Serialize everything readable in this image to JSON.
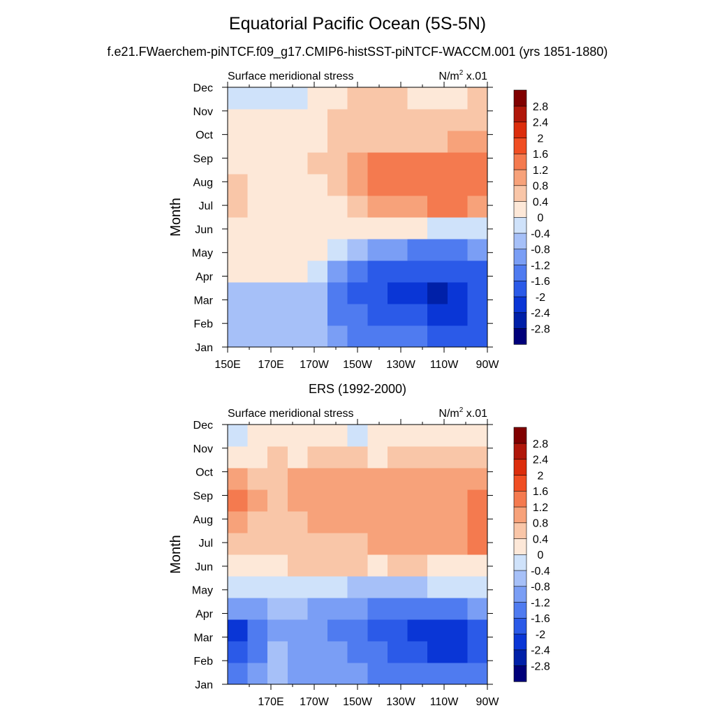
{
  "header": {
    "title": "Equatorial Pacific Ocean (5S-5N)",
    "subtitle": "f.e21.FWaerchem-piNTCF.f09_g17.CMIP6-histSST-piNTCF-WACCM.001 (yrs 1851-1880)"
  },
  "colorbar_colors": [
    "#00007a",
    "#0020a8",
    "#0a36d6",
    "#2b5ae8",
    "#4f7bf0",
    "#7a9ef5",
    "#a6c0f8",
    "#cfe2fa",
    "#fde8d8",
    "#f9c6a8",
    "#f7a27a",
    "#f47a4f",
    "#f04e23",
    "#dc2d0c",
    "#b0170a",
    "#800000"
  ],
  "chart_data": [
    {
      "type": "heatmap",
      "panel_title": "",
      "left_label": "Surface meridional stress",
      "right_label_base": "N/m",
      "right_label_sup": "2",
      "right_label_tail": " x.01",
      "ylabel": "Month",
      "x_ticks": [
        "150E",
        "170E",
        "170W",
        "150W",
        "130W",
        "110W",
        "90W"
      ],
      "y_ticks": [
        "Jan",
        "Feb",
        "Mar",
        "Apr",
        "May",
        "Jun",
        "Jul",
        "Aug",
        "Sep",
        "Oct",
        "Nov",
        "Dec"
      ],
      "levels": [
        -2.8,
        -2.4,
        -2,
        -1.6,
        -1.2,
        -0.8,
        -0.4,
        0,
        0.4,
        0.8,
        1.2,
        1.6,
        2,
        2.4,
        2.8
      ],
      "level_labels": [
        "-2.8",
        "-2.4",
        "-2",
        "-1.6",
        "-1.2",
        "-0.8",
        "-0.4",
        "0",
        "0.4",
        "0.8",
        "1.2",
        "1.6",
        "2",
        "2.4",
        "2.8"
      ],
      "x": [
        "150E",
        "160E",
        "170E",
        "180",
        "170W",
        "160W",
        "150W",
        "140W",
        "130W",
        "120W",
        "110W",
        "100W",
        "90W"
      ],
      "y": [
        "Jan",
        "Feb",
        "Mar",
        "Apr",
        "May",
        "Jun",
        "Jul",
        "Aug",
        "Sep",
        "Oct",
        "Nov",
        "Dec"
      ],
      "z": [
        [
          -0.6,
          -0.6,
          -0.6,
          -0.6,
          -0.6,
          -1.0,
          -1.3,
          -1.4,
          -1.5,
          -1.6,
          -1.7,
          -1.8,
          -1.8
        ],
        [
          -0.6,
          -0.6,
          -0.6,
          -0.6,
          -0.7,
          -1.3,
          -1.6,
          -1.8,
          -2.0,
          -2.0,
          -2.1,
          -2.2,
          -2.0
        ],
        [
          -0.5,
          -0.5,
          -0.5,
          -0.5,
          -0.6,
          -1.3,
          -1.7,
          -1.9,
          -2.2,
          -2.3,
          -2.5,
          -2.4,
          -2.0
        ],
        [
          0.2,
          0.2,
          0.2,
          0.2,
          -0.3,
          -1.0,
          -1.3,
          -1.7,
          -1.9,
          -2.0,
          -2.0,
          -1.9,
          -1.7
        ],
        [
          0.2,
          0.2,
          0.2,
          0.2,
          0.2,
          -0.3,
          -0.8,
          -1.0,
          -1.2,
          -1.3,
          -1.4,
          -1.4,
          -1.2
        ],
        [
          0.2,
          0.2,
          0.2,
          0.2,
          0.2,
          0.2,
          0.2,
          0.3,
          0.2,
          0.1,
          -0.2,
          -0.4,
          -0.4
        ],
        [
          0.4,
          0.2,
          0.2,
          0.2,
          0.2,
          0.3,
          0.5,
          0.9,
          1.0,
          1.1,
          1.2,
          1.2,
          1.1
        ],
        [
          0.5,
          0.2,
          0.2,
          0.2,
          0.3,
          0.5,
          0.8,
          1.3,
          1.4,
          1.5,
          1.4,
          1.3,
          1.3
        ],
        [
          0.2,
          0.2,
          0.2,
          0.2,
          0.4,
          0.7,
          0.9,
          1.2,
          1.3,
          1.3,
          1.3,
          1.3,
          1.3
        ],
        [
          0.2,
          0.2,
          0.2,
          0.2,
          0.3,
          0.5,
          0.6,
          0.7,
          0.7,
          0.7,
          0.7,
          0.8,
          0.9
        ],
        [
          0.1,
          0.1,
          0.2,
          0.2,
          0.3,
          0.5,
          0.6,
          0.6,
          0.6,
          0.5,
          0.5,
          0.6,
          0.7
        ],
        [
          -0.1,
          -0.1,
          -0.1,
          -0.1,
          0.2,
          0.3,
          0.4,
          0.4,
          0.4,
          0.3,
          0.3,
          0.3,
          0.4
        ]
      ]
    },
    {
      "type": "heatmap",
      "panel_title": "ERS (1992-2000)",
      "left_label": "Surface meridional stress",
      "right_label_base": "N/m",
      "right_label_sup": "2",
      "right_label_tail": " x.01",
      "ylabel": "Month",
      "x_ticks": [
        "170E",
        "170W",
        "150W",
        "130W",
        "110W",
        "90W"
      ],
      "y_ticks": [
        "Jan",
        "Feb",
        "Mar",
        "Apr",
        "May",
        "Jun",
        "Jul",
        "Aug",
        "Sep",
        "Oct",
        "Nov",
        "Dec"
      ],
      "levels": [
        -2.8,
        -2.4,
        -2,
        -1.6,
        -1.2,
        -0.8,
        -0.4,
        0,
        0.4,
        0.8,
        1.2,
        1.6,
        2,
        2.4,
        2.8
      ],
      "level_labels": [
        "-2.8",
        "-2.4",
        "-2",
        "-1.6",
        "-1.2",
        "-0.8",
        "-0.4",
        "0",
        "0.4",
        "0.8",
        "1.2",
        "1.6",
        "2",
        "2.4",
        "2.8"
      ],
      "x": [
        "150E",
        "160E",
        "170E",
        "180",
        "170W",
        "160W",
        "150W",
        "140W",
        "130W",
        "120W",
        "110W",
        "100W",
        "90W"
      ],
      "y": [
        "Jan",
        "Feb",
        "Mar",
        "Apr",
        "May",
        "Jun",
        "Jul",
        "Aug",
        "Sep",
        "Oct",
        "Nov",
        "Dec"
      ],
      "z": [
        [
          -1.5,
          -1.0,
          -0.6,
          -1.0,
          -1.0,
          -1.1,
          -1.2,
          -1.4,
          -1.4,
          -1.5,
          -1.6,
          -1.6,
          -1.5
        ],
        [
          -2.0,
          -1.3,
          -0.7,
          -1.1,
          -1.1,
          -1.2,
          -1.3,
          -1.6,
          -1.8,
          -2.0,
          -2.1,
          -2.2,
          -2.0
        ],
        [
          -2.1,
          -1.4,
          -0.9,
          -1.2,
          -1.2,
          -1.3,
          -1.4,
          -1.7,
          -2.0,
          -2.1,
          -2.2,
          -2.2,
          -2.0
        ],
        [
          -1.2,
          -1.0,
          -0.8,
          -0.8,
          -0.9,
          -1.0,
          -1.1,
          -1.3,
          -1.4,
          -1.4,
          -1.4,
          -1.3,
          -1.1
        ],
        [
          -0.3,
          -0.2,
          -0.2,
          -0.3,
          -0.3,
          -0.4,
          -0.5,
          -0.6,
          -0.6,
          -0.5,
          -0.4,
          -0.4,
          -0.3
        ],
        [
          0.3,
          0.3,
          0.3,
          0.4,
          0.4,
          0.4,
          0.4,
          0.3,
          0.4,
          0.4,
          0.3,
          0.2,
          0.3
        ],
        [
          0.7,
          0.5,
          0.5,
          0.6,
          0.7,
          0.6,
          0.7,
          0.8,
          0.8,
          0.8,
          0.9,
          1.1,
          1.2
        ],
        [
          0.8,
          0.6,
          0.7,
          0.7,
          0.8,
          0.8,
          0.9,
          0.9,
          0.9,
          0.8,
          0.8,
          1.1,
          1.3
        ],
        [
          1.2,
          0.9,
          0.6,
          0.8,
          0.9,
          0.9,
          0.9,
          0.9,
          0.9,
          0.9,
          0.8,
          0.9,
          1.2
        ],
        [
          0.8,
          0.7,
          0.7,
          0.8,
          0.9,
          0.8,
          0.9,
          0.8,
          0.8,
          0.9,
          0.8,
          0.8,
          1.0
        ],
        [
          0.3,
          0.3,
          0.4,
          0.3,
          0.4,
          0.5,
          0.4,
          0.3,
          0.5,
          0.5,
          0.5,
          0.6,
          0.6
        ],
        [
          -0.1,
          0.2,
          0.2,
          0.2,
          0.3,
          0.2,
          -0.1,
          0.2,
          0.3,
          0.3,
          0.3,
          0.3,
          0.3
        ]
      ]
    }
  ]
}
